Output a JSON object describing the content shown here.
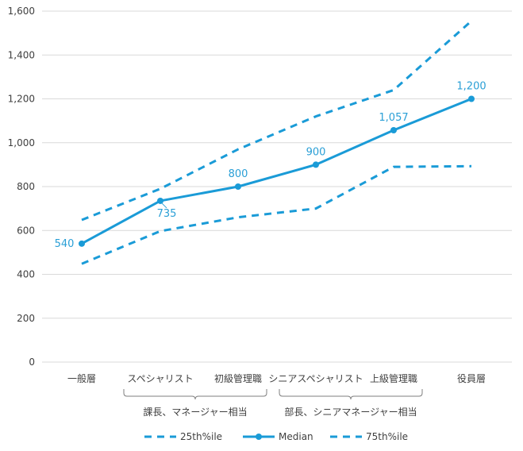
{
  "chart_data": {
    "type": "line",
    "title": "",
    "xlabel": "",
    "ylabel": "",
    "ylim": [
      0,
      1600
    ],
    "yticks": [
      0,
      200,
      400,
      600,
      800,
      1000,
      1200,
      1400,
      1600
    ],
    "ytick_labels": [
      "0",
      "200",
      "400",
      "600",
      "800",
      "1,000",
      "1,200",
      "1,400",
      "1,600"
    ],
    "grid": true,
    "categories": [
      "一般層",
      "スペシャリスト",
      "初級管理職",
      "シニアスペシャリスト",
      "上級管理職",
      "役員層"
    ],
    "category_groups": [
      {
        "label": "課長、マネージャー相当",
        "categories": [
          "スペシャリスト",
          "初級管理職"
        ]
      },
      {
        "label": "部長、シニアマネージャー相当",
        "categories": [
          "シニアスペシャリスト",
          "上級管理職"
        ]
      }
    ],
    "series": [
      {
        "name": "25th%ile",
        "style": "dashed",
        "color": "#1a9bd7",
        "values": [
          448,
          597,
          660,
          700,
          890,
          893
        ]
      },
      {
        "name": "Median",
        "style": "solid-markers",
        "color": "#1a9bd7",
        "values": [
          540,
          735,
          800,
          900,
          1057,
          1200
        ]
      },
      {
        "name": "75th%ile",
        "style": "dashed",
        "color": "#1a9bd7",
        "values": [
          648,
          790,
          970,
          1120,
          1240,
          1555
        ]
      }
    ],
    "data_labels": [
      "540",
      "735",
      "800",
      "900",
      "1,057",
      "1,200"
    ],
    "legend_position": "bottom"
  },
  "colors": {
    "line": "#1a9bd7",
    "label": "#2a9fd6",
    "grid": "#d9d9d9",
    "axis_text": "#404040"
  }
}
